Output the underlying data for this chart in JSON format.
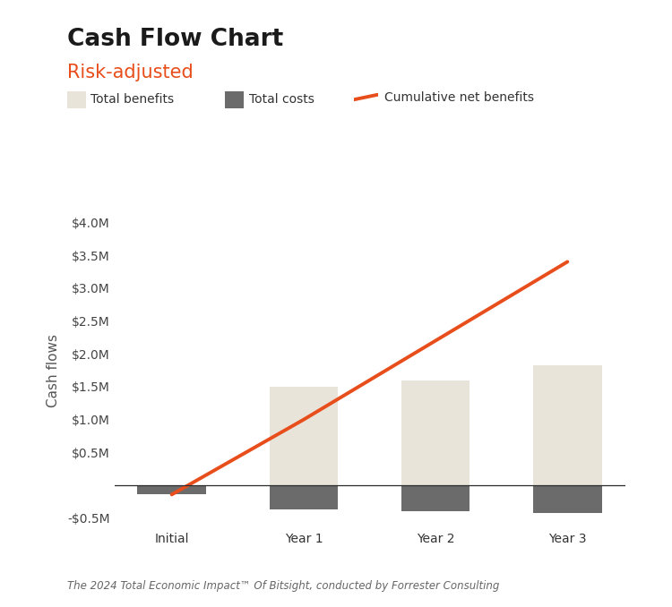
{
  "title": "Cash Flow Chart",
  "subtitle": "Risk-adjusted",
  "subtitle_color": "#e84e1b",
  "footnote": "The 2024 Total Economic Impact™ Of Bitsight, conducted by Forrester Consulting",
  "categories": [
    "Initial",
    "Year 1",
    "Year 2",
    "Year 3"
  ],
  "total_benefits": [
    0,
    1.5,
    1.6,
    1.82
  ],
  "total_costs": [
    -0.14,
    -0.36,
    -0.4,
    -0.42
  ],
  "cumulative_net_benefits": [
    -0.14,
    1.0,
    2.2,
    3.4
  ],
  "bar_color_benefits": "#e8e4da",
  "bar_color_costs": "#6b6b6b",
  "line_color": "#e84e1b",
  "ylabel": "Cash flows",
  "ylim_min": -0.65,
  "ylim_max": 4.15,
  "yticks": [
    -0.5,
    0.5,
    1.0,
    1.5,
    2.0,
    2.5,
    3.0,
    3.5,
    4.0
  ],
  "ytick_labels": [
    "-$0.5M",
    "$0.5M",
    "$1.0M",
    "$1.5M",
    "$2.0M",
    "$2.5M",
    "$3.0M",
    "$3.5M",
    "$4.0M"
  ],
  "background_color": "#ffffff",
  "title_fontsize": 19,
  "subtitle_fontsize": 15,
  "axis_fontsize": 11,
  "tick_fontsize": 10,
  "bar_width": 0.52,
  "line_width": 2.8
}
